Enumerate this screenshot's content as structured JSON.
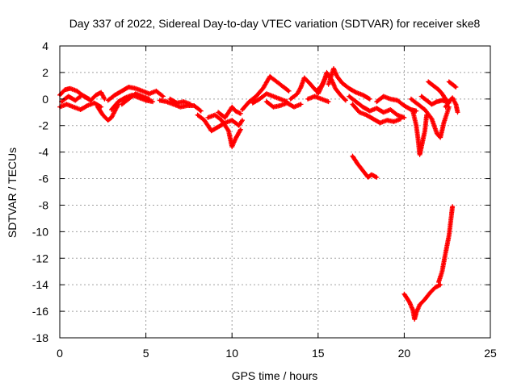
{
  "chart_data": {
    "type": "scatter",
    "title": "Day 337 of 2022, Sidereal Day-to-day VTEC variation (SDTVAR) for receiver ske8",
    "xlabel": "GPS time / hours",
    "ylabel": "SDTVAR / TECUs",
    "xlim": [
      0,
      25
    ],
    "ylim": [
      -18,
      4
    ],
    "xticks": [
      0,
      5,
      10,
      15,
      20,
      25
    ],
    "yticks": [
      -18,
      -16,
      -14,
      -12,
      -10,
      -8,
      -6,
      -4,
      -2,
      0,
      2,
      4
    ],
    "grid": true,
    "legend": "none",
    "marker": "+",
    "series": [
      {
        "name": "SDTVAR",
        "color": "#ff0000",
        "segments": [
          [
            [
              0.0,
              0.3
            ],
            [
              0.3,
              0.7
            ],
            [
              0.6,
              0.8
            ],
            [
              1.0,
              0.6
            ],
            [
              1.4,
              0.2
            ],
            [
              1.8,
              -0.1
            ],
            [
              2.1,
              0.3
            ],
            [
              2.4,
              0.5
            ],
            [
              2.6,
              0.0
            ]
          ],
          [
            [
              0.0,
              -0.6
            ],
            [
              0.4,
              -0.4
            ],
            [
              0.8,
              -0.6
            ],
            [
              1.2,
              -0.8
            ],
            [
              1.6,
              -0.5
            ],
            [
              2.0,
              -0.3
            ],
            [
              2.4,
              -0.6
            ]
          ],
          [
            [
              0.1,
              -0.2
            ],
            [
              0.5,
              0.2
            ],
            [
              0.9,
              -0.1
            ],
            [
              1.3,
              0.3
            ],
            [
              1.7,
              0.0
            ]
          ],
          [
            [
              2.2,
              -0.6
            ],
            [
              2.5,
              -1.2
            ],
            [
              2.8,
              -1.6
            ],
            [
              3.0,
              -1.4
            ],
            [
              3.2,
              -0.9
            ],
            [
              3.4,
              -0.4
            ]
          ],
          [
            [
              2.8,
              -0.1
            ],
            [
              3.2,
              0.3
            ],
            [
              3.6,
              0.6
            ],
            [
              4.0,
              0.9
            ],
            [
              4.4,
              0.8
            ],
            [
              4.8,
              0.6
            ],
            [
              5.2,
              0.4
            ],
            [
              5.6,
              0.6
            ],
            [
              6.0,
              0.2
            ]
          ],
          [
            [
              3.0,
              -0.8
            ],
            [
              3.4,
              -0.2
            ],
            [
              3.8,
              0.1
            ],
            [
              4.2,
              0.3
            ],
            [
              4.6,
              0.1
            ],
            [
              5.0,
              -0.1
            ],
            [
              5.4,
              -0.2
            ]
          ],
          [
            [
              3.6,
              -0.4
            ],
            [
              4.0,
              0.0
            ],
            [
              4.4,
              0.4
            ],
            [
              4.8,
              0.2
            ],
            [
              5.2,
              0.0
            ]
          ],
          [
            [
              5.8,
              -0.1
            ],
            [
              6.2,
              -0.2
            ],
            [
              6.6,
              -0.4
            ],
            [
              7.0,
              -0.6
            ],
            [
              7.4,
              -0.5
            ],
            [
              7.8,
              -0.5
            ],
            [
              8.2,
              -0.9
            ]
          ],
          [
            [
              6.4,
              0.0
            ],
            [
              6.8,
              -0.3
            ],
            [
              7.2,
              -0.2
            ],
            [
              7.6,
              -0.4
            ]
          ],
          [
            [
              8.0,
              -1.2
            ],
            [
              8.4,
              -1.6
            ],
            [
              8.8,
              -2.4
            ],
            [
              9.2,
              -2.1
            ],
            [
              9.6,
              -1.8
            ],
            [
              10.0,
              -1.6
            ],
            [
              10.4,
              -2.0
            ],
            [
              10.6,
              -1.6
            ]
          ],
          [
            [
              8.6,
              -1.4
            ],
            [
              9.0,
              -1.2
            ],
            [
              9.4,
              -1.6
            ],
            [
              9.8,
              -2.4
            ],
            [
              10.0,
              -3.6
            ],
            [
              10.2,
              -3.0
            ],
            [
              10.5,
              -2.3
            ]
          ],
          [
            [
              9.2,
              -1.0
            ],
            [
              9.6,
              -1.4
            ],
            [
              10.0,
              -0.6
            ],
            [
              10.2,
              -0.9
            ],
            [
              10.5,
              -1.1
            ]
          ],
          [
            [
              10.6,
              -0.8
            ],
            [
              11.0,
              -0.2
            ],
            [
              11.4,
              0.2
            ],
            [
              11.8,
              0.8
            ],
            [
              12.2,
              1.7
            ],
            [
              12.6,
              1.3
            ],
            [
              13.0,
              0.9
            ],
            [
              13.3,
              0.6
            ]
          ],
          [
            [
              11.2,
              -0.3
            ],
            [
              11.6,
              0.0
            ],
            [
              12.0,
              0.4
            ],
            [
              12.4,
              0.2
            ],
            [
              12.8,
              0.0
            ],
            [
              13.2,
              -0.2
            ]
          ],
          [
            [
              12.0,
              -0.2
            ],
            [
              12.4,
              -0.6
            ],
            [
              12.8,
              -0.5
            ],
            [
              13.2,
              -0.3
            ],
            [
              13.6,
              -0.6
            ],
            [
              14.0,
              -0.4
            ]
          ],
          [
            [
              13.4,
              0.0
            ],
            [
              13.8,
              0.4
            ],
            [
              14.0,
              0.9
            ],
            [
              14.2,
              1.6
            ],
            [
              14.5,
              1.2
            ],
            [
              14.9,
              0.6
            ],
            [
              15.2,
              1.0
            ],
            [
              15.5,
              1.8
            ]
          ],
          [
            [
              14.4,
              0.0
            ],
            [
              14.8,
              0.2
            ],
            [
              15.2,
              0.0
            ],
            [
              15.6,
              -0.2
            ]
          ],
          [
            [
              15.0,
              0.4
            ],
            [
              15.3,
              1.2
            ],
            [
              15.5,
              2.0
            ],
            [
              15.8,
              1.4
            ],
            [
              16.0,
              0.8
            ],
            [
              16.3,
              0.3
            ],
            [
              16.6,
              -0.1
            ]
          ],
          [
            [
              15.6,
              1.1
            ],
            [
              15.9,
              2.3
            ],
            [
              16.1,
              1.7
            ],
            [
              16.4,
              1.2
            ],
            [
              16.8,
              0.8
            ],
            [
              17.2,
              0.5
            ],
            [
              17.6,
              0.3
            ],
            [
              18.0,
              0.0
            ]
          ],
          [
            [
              16.8,
              0.2
            ],
            [
              17.2,
              -0.2
            ],
            [
              17.6,
              -0.6
            ],
            [
              18.0,
              -0.9
            ],
            [
              18.4,
              -0.7
            ],
            [
              18.8,
              -1.0
            ],
            [
              19.2,
              -0.8
            ],
            [
              19.6,
              -1.2
            ],
            [
              20.0,
              -1.4
            ]
          ],
          [
            [
              17.0,
              -0.4
            ],
            [
              17.4,
              -1.0
            ],
            [
              17.8,
              -1.2
            ],
            [
              18.2,
              -1.5
            ],
            [
              18.6,
              -1.8
            ],
            [
              19.0,
              -1.6
            ],
            [
              19.4,
              -1.7
            ],
            [
              19.8,
              -1.5
            ]
          ],
          [
            [
              17.0,
              -4.3
            ],
            [
              17.3,
              -4.9
            ],
            [
              17.6,
              -5.4
            ],
            [
              17.9,
              -5.9
            ],
            [
              18.1,
              -5.7
            ],
            [
              18.4,
              -5.9
            ]
          ],
          [
            [
              18.4,
              -0.2
            ],
            [
              18.8,
              0.2
            ],
            [
              19.2,
              0.0
            ],
            [
              19.6,
              -0.1
            ],
            [
              20.0,
              -0.5
            ],
            [
              20.4,
              -0.8
            ],
            [
              20.7,
              -0.9
            ]
          ],
          [
            [
              20.0,
              -14.7
            ],
            [
              20.3,
              -15.3
            ],
            [
              20.5,
              -15.9
            ],
            [
              20.6,
              -16.6
            ],
            [
              20.7,
              -16.1
            ],
            [
              20.9,
              -15.5
            ],
            [
              21.2,
              -15.1
            ],
            [
              21.5,
              -14.6
            ],
            [
              21.8,
              -14.2
            ],
            [
              22.1,
              -14.0
            ]
          ],
          [
            [
              22.0,
              -13.8
            ],
            [
              22.2,
              -13.0
            ],
            [
              22.4,
              -11.6
            ],
            [
              22.6,
              -10.3
            ],
            [
              22.7,
              -9.2
            ],
            [
              22.8,
              -8.1
            ]
          ],
          [
            [
              20.5,
              -0.9
            ],
            [
              20.7,
              -2.0
            ],
            [
              20.8,
              -3.0
            ],
            [
              20.9,
              -4.2
            ],
            [
              21.0,
              -3.6
            ],
            [
              21.2,
              -2.4
            ],
            [
              21.3,
              -1.2
            ]
          ],
          [
            [
              20.4,
              0.0
            ],
            [
              20.8,
              -0.4
            ],
            [
              21.2,
              -0.8
            ],
            [
              21.6,
              -1.5
            ],
            [
              21.9,
              -2.6
            ],
            [
              22.1,
              -2.9
            ],
            [
              22.3,
              -1.8
            ],
            [
              22.6,
              -0.6
            ]
          ],
          [
            [
              21.4,
              1.3
            ],
            [
              21.7,
              1.0
            ],
            [
              22.0,
              0.7
            ],
            [
              22.2,
              0.4
            ],
            [
              22.4,
              0.0
            ],
            [
              22.6,
              -0.3
            ]
          ],
          [
            [
              21.0,
              0.2
            ],
            [
              21.3,
              -0.1
            ],
            [
              21.6,
              -0.4
            ],
            [
              21.9,
              -0.2
            ],
            [
              22.2,
              -0.1
            ],
            [
              22.5,
              -0.2
            ]
          ],
          [
            [
              22.6,
              1.3
            ],
            [
              22.8,
              1.1
            ],
            [
              23.0,
              0.9
            ]
          ],
          [
            [
              22.4,
              -0.6
            ],
            [
              22.6,
              -0.2
            ],
            [
              22.8,
              0.1
            ],
            [
              23.0,
              -0.4
            ],
            [
              23.1,
              -1.0
            ]
          ]
        ]
      }
    ]
  }
}
